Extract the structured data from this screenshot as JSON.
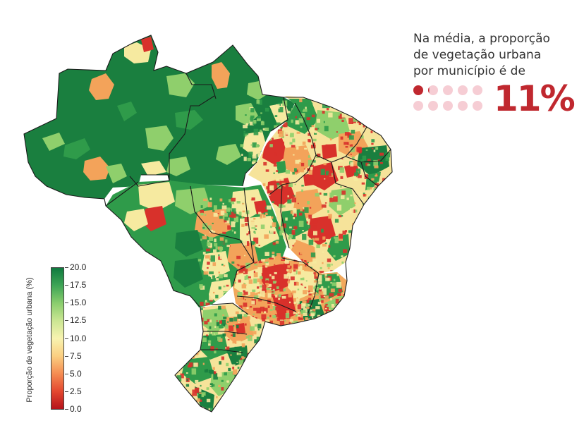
{
  "headline": {
    "line1": "Na média, a proporção",
    "line2": "de vegetação urbana",
    "line3": "por município é de"
  },
  "stat": {
    "value_label": "11%",
    "dots_total": 10,
    "dots_filled": 1.1,
    "filled_color": "#c0282f",
    "empty_color": "#f6cdd4"
  },
  "legend": {
    "title": "Proporção de vegetação urbana (%)",
    "ticks": [
      "20.0",
      "17.5",
      "15.0",
      "12.5",
      "10.0",
      "7.5",
      "5.0",
      "2.5",
      "0.0"
    ],
    "range": [
      0,
      20
    ],
    "colors": [
      "#b5121b",
      "#e4482f",
      "#f58c52",
      "#fbcf81",
      "#f8f3b0",
      "#cbe693",
      "#8acd6d",
      "#3fa556",
      "#0f7a3f"
    ]
  },
  "map": {
    "name": "Brasil",
    "region_colors": {
      "dense_forest": "#1a7f3f",
      "green": "#2f9b4a",
      "light_green": "#8fcf6c",
      "yellow": "#f6eaa0",
      "orange": "#f3a35a",
      "red": "#d8312b"
    },
    "border_color": "#1a1a1a"
  }
}
